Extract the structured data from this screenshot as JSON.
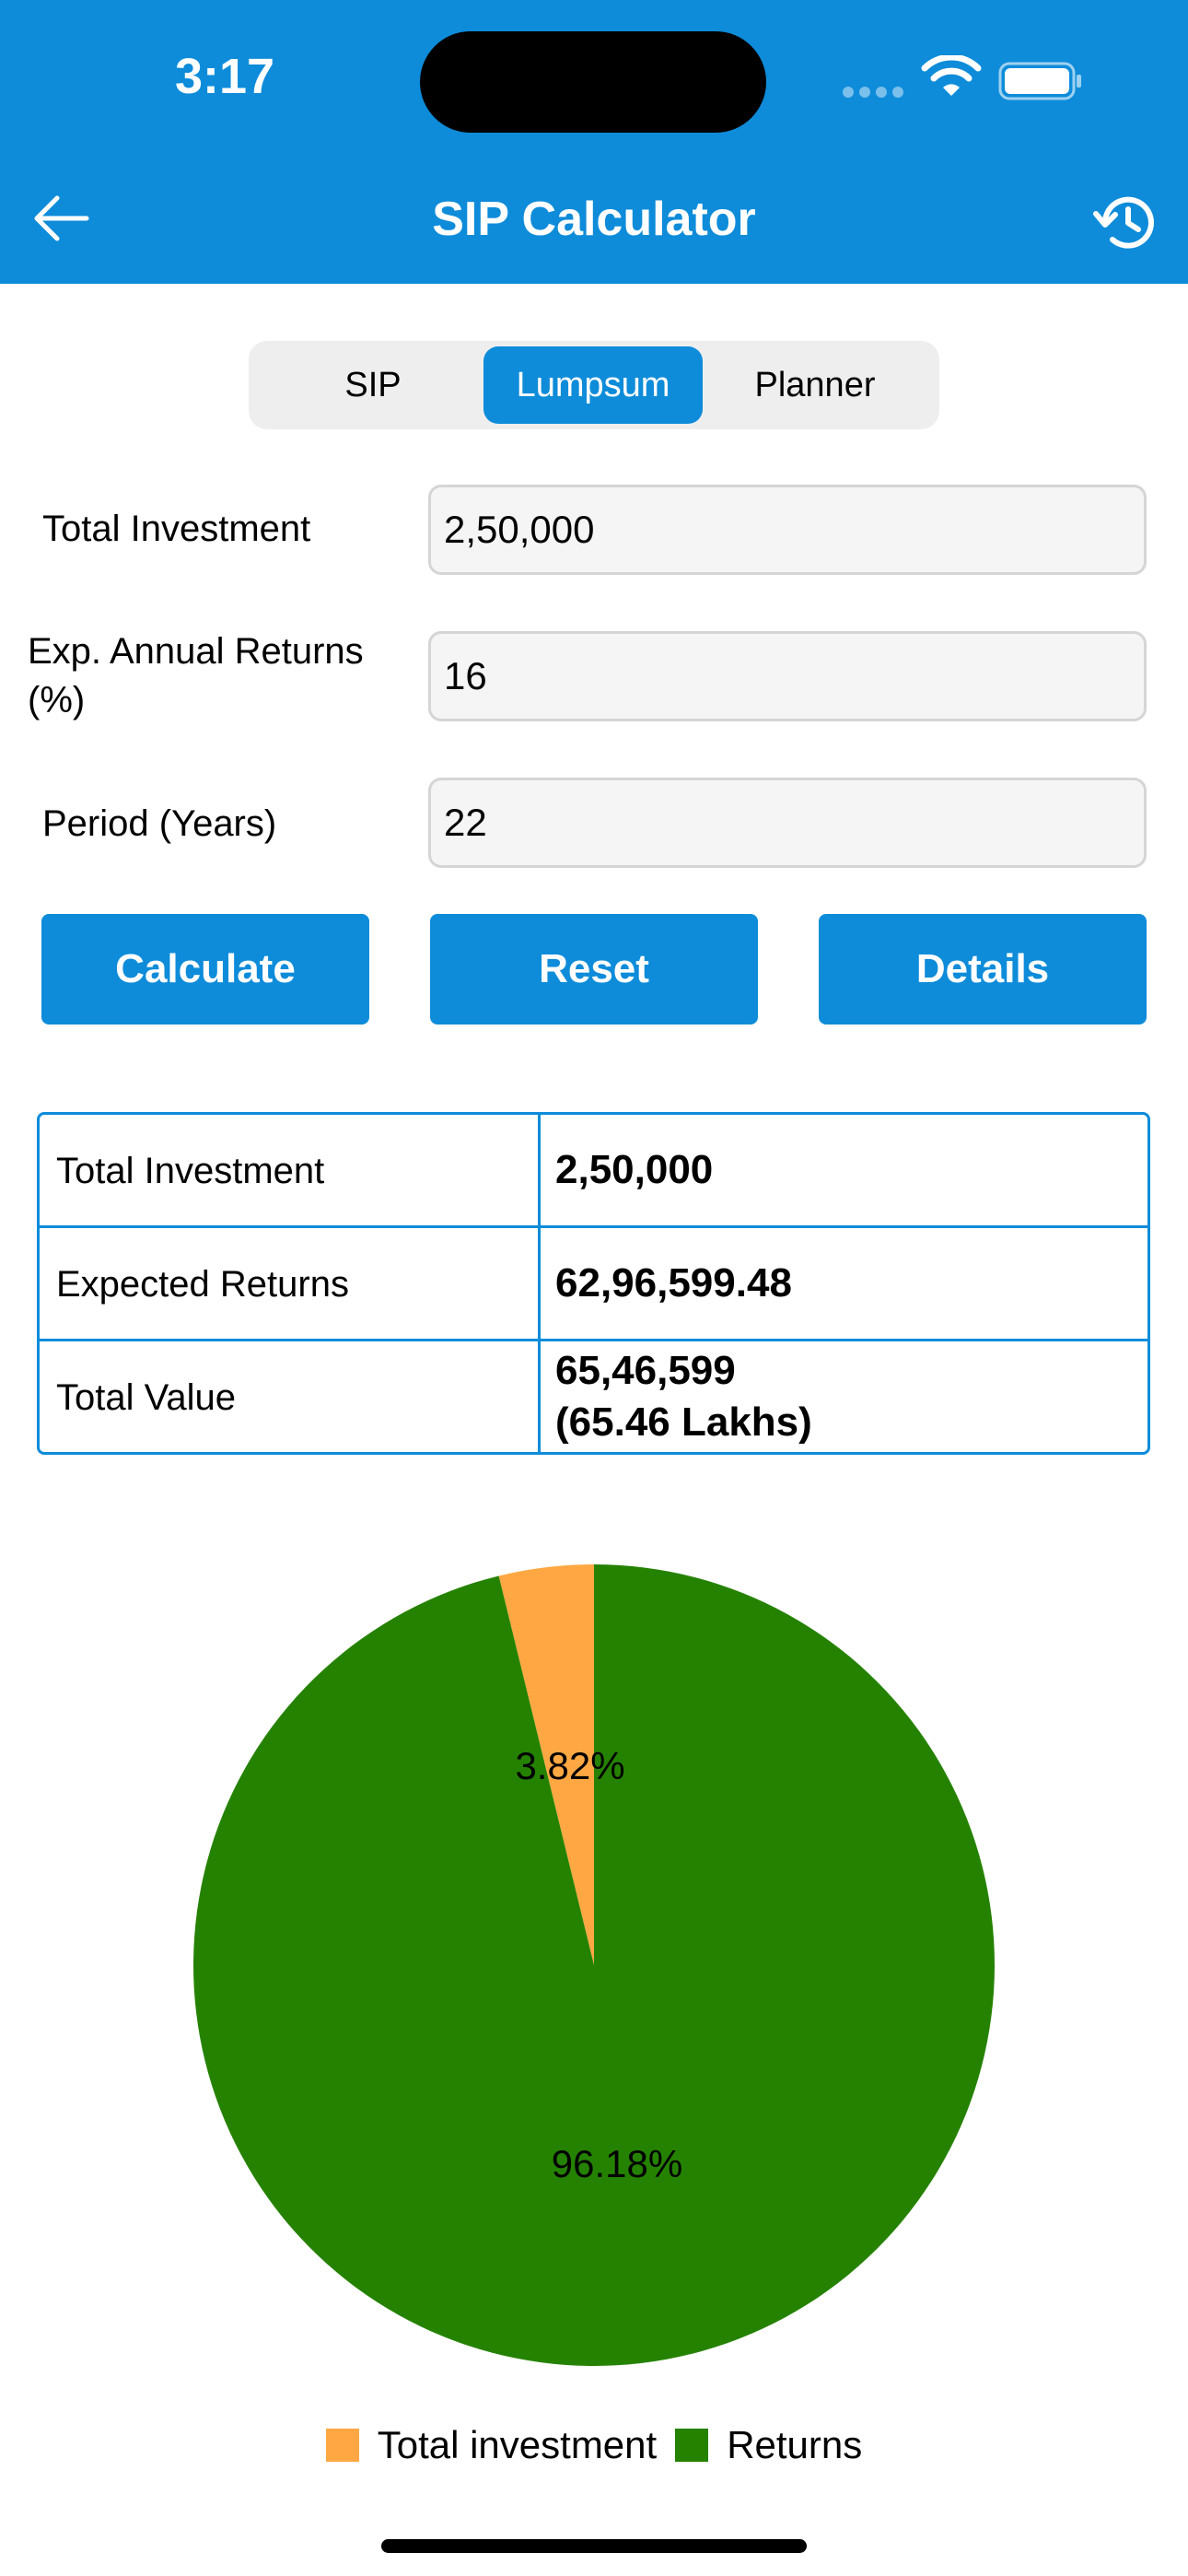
{
  "status_bar": {
    "time": "3:17"
  },
  "header": {
    "title": "SIP Calculator"
  },
  "tabs": [
    {
      "label": "SIP",
      "selected": false
    },
    {
      "label": "Lumpsum",
      "selected": true
    },
    {
      "label": "Planner",
      "selected": false
    }
  ],
  "form": {
    "total_investment": {
      "label": "Total Investment",
      "value": "2,50,000"
    },
    "annual_returns": {
      "label_line1": "Exp. Annual Returns",
      "label_line2": "(%)",
      "value": "16"
    },
    "period": {
      "label": "Period (Years)",
      "value": "22"
    }
  },
  "buttons": {
    "calculate": "Calculate",
    "reset": "Reset",
    "details": "Details"
  },
  "results": [
    {
      "label": "Total Investment",
      "value": "2,50,000",
      "value2": ""
    },
    {
      "label": "Expected Returns",
      "value": "62,96,599.48",
      "value2": ""
    },
    {
      "label": "Total Value",
      "value": "65,46,599",
      "value2": "(65.46 Lakhs)"
    }
  ],
  "chart_data": {
    "type": "pie",
    "categories": [
      "Total investment",
      "Returns"
    ],
    "values": [
      3.82,
      96.18
    ],
    "labels": [
      "3.82%",
      "96.18%"
    ],
    "colors": [
      "#FFA843",
      "#258200"
    ],
    "legend_position": "bottom"
  },
  "legend": {
    "investment": "Total investment",
    "returns": "Returns"
  },
  "colors": {
    "accent": "#0E8CDA",
    "investment": "#FFA843",
    "returns": "#258200"
  }
}
